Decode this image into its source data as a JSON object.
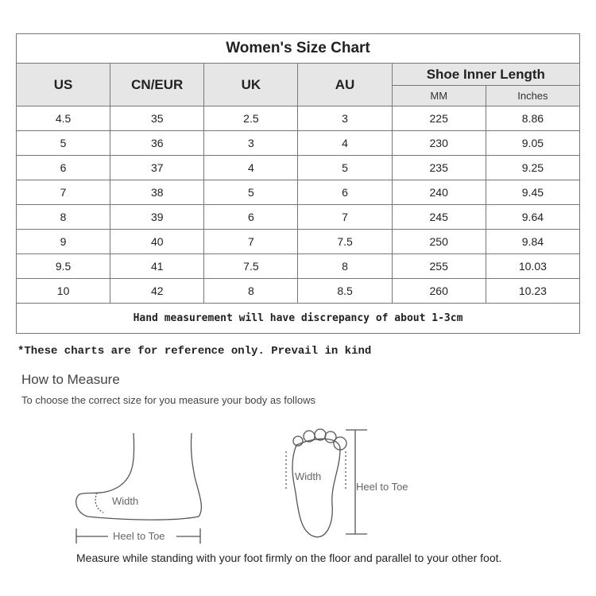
{
  "table": {
    "title": "Women's Size Chart",
    "headers": [
      "US",
      "CN/EUR",
      "UK",
      "AU",
      "Shoe Inner Length"
    ],
    "subheaders": [
      "MM",
      "Inches"
    ],
    "rows": [
      [
        "4.5",
        "35",
        "2.5",
        "3",
        "225",
        "8.86"
      ],
      [
        "5",
        "36",
        "3",
        "4",
        "230",
        "9.05"
      ],
      [
        "6",
        "37",
        "4",
        "5",
        "235",
        "9.25"
      ],
      [
        "7",
        "38",
        "5",
        "6",
        "240",
        "9.45"
      ],
      [
        "8",
        "39",
        "6",
        "7",
        "245",
        "9.64"
      ],
      [
        "9",
        "40",
        "7",
        "7.5",
        "250",
        "9.84"
      ],
      [
        "9.5",
        "41",
        "7.5",
        "8",
        "255",
        "10.03"
      ],
      [
        "10",
        "42",
        "8",
        "8.5",
        "260",
        "10.23"
      ]
    ],
    "note": "Hand measurement will have discrepancy of about 1-3cm"
  },
  "reference_note": "*These charts are for reference only. Prevail in kind",
  "how_to": {
    "title": "How to Measure",
    "subtitle": "To choose the correct size for you measure your body as follows",
    "side_width_label": "Width",
    "side_length_label": "Heel to Toe",
    "top_width_label": "Width",
    "top_length_label": "Heel to Toe",
    "instruction": "Measure while standing with your foot firmly on the floor and parallel to your other foot."
  }
}
